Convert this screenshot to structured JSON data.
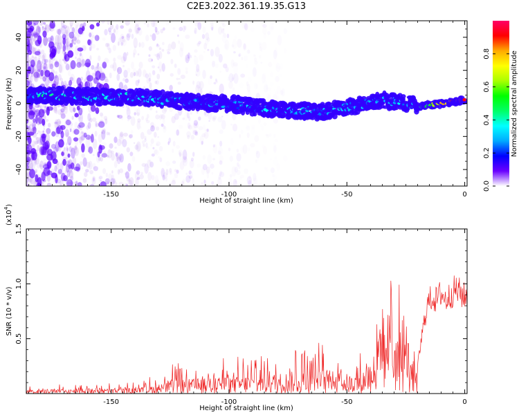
{
  "title": "C2E3.2022.361.19.35.G13",
  "colors": {
    "heat_low": "#e7d6f6",
    "heat_mid": "#5a00ff",
    "snr_line": "#ee2222",
    "axis": "#000000"
  },
  "chart_data": [
    {
      "type": "heatmap",
      "xlabel": "Height of straight line (km)",
      "ylabel": "Frequency (Hz)",
      "xlim": [
        -186,
        1
      ],
      "ylim": [
        -50,
        50
      ],
      "xticks": [
        -150,
        -100,
        -50,
        0
      ],
      "xtick_labels": [
        "-150",
        "-100",
        "-50",
        "0"
      ],
      "yticks": [
        -40,
        -20,
        0,
        20,
        40
      ],
      "ytick_labels": [
        "-40",
        "-20",
        "0",
        "20",
        "40"
      ],
      "colorbar": {
        "label": "Normalized spectral amplitude",
        "ticks": [
          0.0,
          0.2,
          0.4,
          0.6,
          0.8
        ],
        "tick_labels": [
          "0.0",
          "0.2",
          "0.4",
          "0.6",
          "0.8"
        ],
        "range": [
          0,
          1
        ],
        "colormap": [
          "#ffffff",
          "#6a00ff",
          "#0000ff",
          "#00aaff",
          "#00ffff",
          "#00ff66",
          "#00ff00",
          "#aaff00",
          "#ffff00",
          "#ffaa00",
          "#ff0000",
          "#ff0066"
        ]
      },
      "ridge": {
        "x": [
          -186,
          -180,
          -155,
          -140,
          -120,
          -100,
          -80,
          -60,
          -45,
          -35,
          -25,
          -20,
          -15,
          -10,
          -5,
          0
        ],
        "freq": [
          5,
          5,
          4,
          4,
          1,
          0,
          -4,
          -5,
          -1,
          2,
          0,
          -2,
          -1,
          0,
          1,
          2
        ],
        "amplitude": [
          0.15,
          0.3,
          0.25,
          0.25,
          0.2,
          0.2,
          0.25,
          0.22,
          0.22,
          0.25,
          0.2,
          0.3,
          0.45,
          0.7,
          0.75,
          0.8
        ]
      }
    },
    {
      "type": "line",
      "xlabel": "Height of straight line (km)",
      "ylabel": "SNR (10 * v/v)",
      "y_multiplier": "(x10",
      "y_multiplier_exp": "4",
      "y_multiplier_close": ")",
      "xlim": [
        -186,
        1
      ],
      "ylim": [
        0,
        1.5
      ],
      "xticks": [
        -150,
        -100,
        -50,
        0
      ],
      "xtick_labels": [
        "-150",
        "-100",
        "-50",
        "0"
      ],
      "yticks": [
        0.5,
        1.0,
        1.5
      ],
      "ytick_labels": [
        "0.5",
        "1.0",
        "1.5"
      ],
      "series": [
        {
          "color": "#ee2222",
          "envelope_x": [
            -186,
            -160,
            -140,
            -130,
            -125,
            -110,
            -100,
            -90,
            -75,
            -65,
            -55,
            -45,
            -40,
            -37,
            -34,
            -32,
            -30,
            -28,
            -26,
            -24,
            -22,
            -20,
            -18,
            -16,
            -14,
            -12,
            -10,
            -8,
            -6,
            -4,
            -2,
            0
          ],
          "envelope_y": [
            0.05,
            0.06,
            0.07,
            0.12,
            0.18,
            0.2,
            0.22,
            0.24,
            0.28,
            0.32,
            0.3,
            0.22,
            0.45,
            0.55,
            0.7,
            0.9,
            1.05,
            0.85,
            0.7,
            0.5,
            0.35,
            0.25,
            0.55,
            0.8,
            0.88,
            0.85,
            0.92,
            0.85,
            0.9,
            0.95,
            0.92,
            0.88
          ]
        }
      ]
    }
  ]
}
